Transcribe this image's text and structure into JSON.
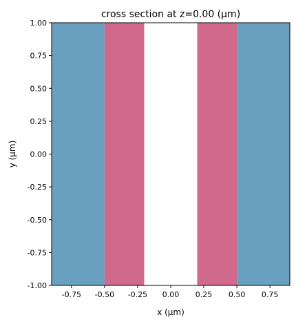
{
  "chart_data": {
    "type": "heatmap",
    "title": "cross section at z=0.00 (μm)",
    "xlabel": "x (μm)",
    "ylabel": "y (μm)",
    "xlim": [
      -0.9,
      0.9
    ],
    "ylim": [
      -1.0,
      1.0
    ],
    "x_ticks": [
      -0.75,
      -0.5,
      -0.25,
      0.0,
      0.25,
      0.5,
      0.75
    ],
    "x_tick_labels": [
      "-0.75",
      "-0.50",
      "-0.25",
      "0.00",
      "0.25",
      "0.50",
      "0.75"
    ],
    "y_ticks": [
      1.0,
      0.75,
      0.5,
      0.25,
      0.0,
      -0.25,
      -0.5,
      -0.75,
      -1.0
    ],
    "y_tick_labels": [
      "1.00",
      "0.75",
      "0.50",
      "0.25",
      "0.00",
      "-0.25",
      "-0.50",
      "-0.75",
      "-1.00"
    ],
    "grid": false,
    "regions": [
      {
        "x0": -0.9,
        "x1": -0.5,
        "color": "#699fbf"
      },
      {
        "x0": -0.5,
        "x1": -0.2,
        "color": "#d0698b"
      },
      {
        "x0": -0.2,
        "x1": 0.2,
        "color": "#ffffff"
      },
      {
        "x0": 0.2,
        "x1": 0.5,
        "color": "#d0698b"
      },
      {
        "x0": 0.5,
        "x1": 0.9,
        "color": "#699fbf"
      }
    ]
  }
}
